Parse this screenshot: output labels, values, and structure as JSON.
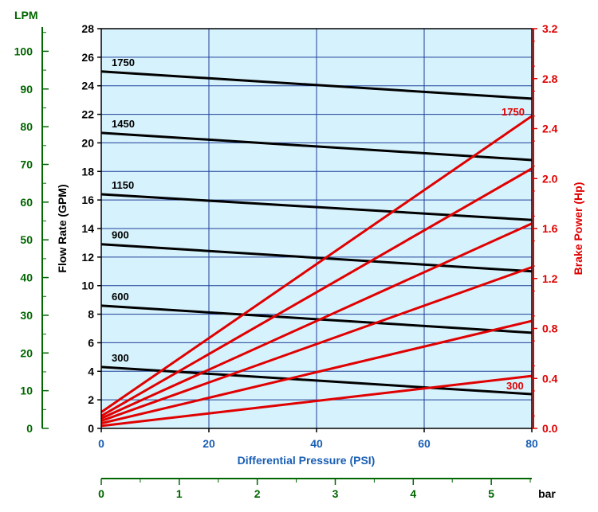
{
  "chart_data": {
    "type": "line",
    "xlabel": "Differential Pressure (PSI)",
    "ylabel": "Flow Rate (GPM)",
    "y2label": "Brake Power (Hp)",
    "lpm_label": "LPM",
    "bar_label": "bar",
    "xlim": [
      0,
      80
    ],
    "ylim": [
      0,
      28
    ],
    "y2lim": [
      0,
      3.2
    ],
    "lpm_lim": [
      0,
      106
    ],
    "bar_lim": [
      0,
      5.52
    ],
    "x_ticks": [
      "0",
      "20",
      "40",
      "60",
      "80"
    ],
    "y_ticks": [
      "0",
      "2",
      "4",
      "6",
      "8",
      "10",
      "12",
      "14",
      "16",
      "18",
      "20",
      "22",
      "24",
      "26",
      "28"
    ],
    "y2_ticks": [
      "0.0",
      "0.4",
      "0.8",
      "1.2",
      "1.6",
      "2.0",
      "2.4",
      "2.8",
      "3.2"
    ],
    "lpm_ticks": [
      "0",
      "10",
      "20",
      "30",
      "40",
      "50",
      "60",
      "70",
      "80",
      "90",
      "100"
    ],
    "bar_ticks": [
      "0",
      "1",
      "2",
      "3",
      "4",
      "5"
    ],
    "grid": true,
    "colors": {
      "plot_bg": "#d6f2fc",
      "flow": "#000000",
      "power": "#e00000",
      "lpm_axis": "#006600",
      "pressure_label": "#1a5fb4",
      "grid": "#1f3f99"
    },
    "flow_series": [
      {
        "name": "1750",
        "x": [
          0,
          80
        ],
        "y": [
          25.0,
          23.1
        ]
      },
      {
        "name": "1450",
        "x": [
          0,
          80
        ],
        "y": [
          20.7,
          18.8
        ]
      },
      {
        "name": "1150",
        "x": [
          0,
          80
        ],
        "y": [
          16.4,
          14.6
        ]
      },
      {
        "name": "900",
        "x": [
          0,
          80
        ],
        "y": [
          12.9,
          11.0
        ]
      },
      {
        "name": "600",
        "x": [
          0,
          80
        ],
        "y": [
          8.6,
          6.7
        ]
      },
      {
        "name": "300",
        "x": [
          0,
          80
        ],
        "y": [
          4.3,
          2.4
        ]
      }
    ],
    "power_series": [
      {
        "name": "1750",
        "x": [
          0,
          80
        ],
        "y": [
          0.13,
          2.5
        ]
      },
      {
        "name": "",
        "x": [
          0,
          80
        ],
        "y": [
          0.1,
          2.08
        ]
      },
      {
        "name": "",
        "x": [
          0,
          80
        ],
        "y": [
          0.08,
          1.64
        ]
      },
      {
        "name": "",
        "x": [
          0,
          80
        ],
        "y": [
          0.06,
          1.29
        ]
      },
      {
        "name": "",
        "x": [
          0,
          80
        ],
        "y": [
          0.04,
          0.86
        ]
      },
      {
        "name": "300",
        "x": [
          0,
          80
        ],
        "y": [
          0.02,
          0.42
        ]
      }
    ]
  }
}
